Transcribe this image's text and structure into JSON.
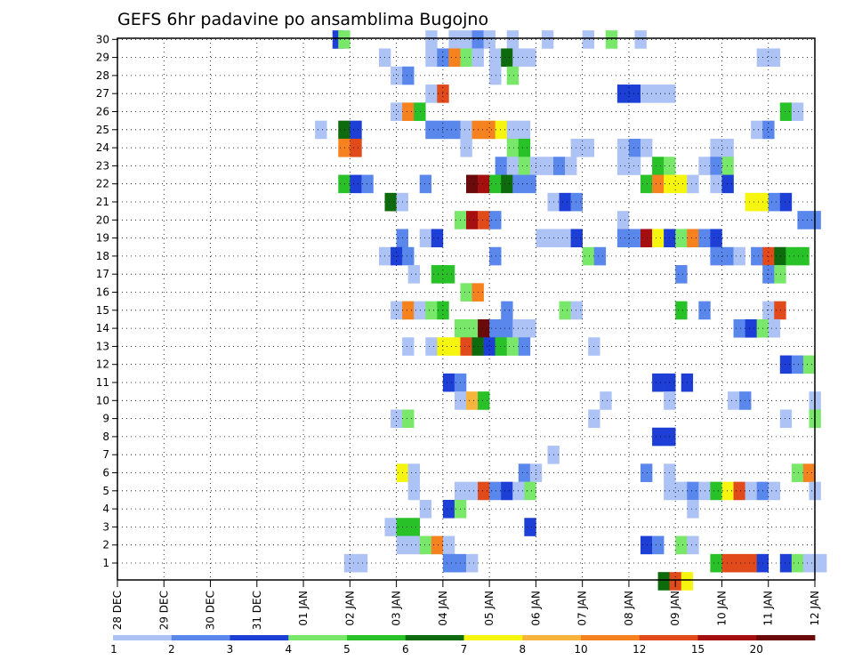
{
  "chart_data": {
    "type": "heatmap",
    "title": "GEFS 6hr padavine po ansamblima Bugojno",
    "x_tick_labels": [
      "28 DEC",
      "29 DEC",
      "30 DEC",
      "31 DEC",
      "01 JAN",
      "02 JAN",
      "03 JAN",
      "04 JAN",
      "05 JAN",
      "06 JAN",
      "07 JAN",
      "08 JAN",
      "09 JAN",
      "10 JAN",
      "11 JAN",
      "12 JAN"
    ],
    "y_tick_labels": [
      "1",
      "2",
      "3",
      "4",
      "5",
      "6",
      "7",
      "8",
      "9",
      "10",
      "11",
      "12",
      "13",
      "14",
      "15",
      "16",
      "17",
      "18",
      "19",
      "20",
      "21",
      "22",
      "23",
      "24",
      "25",
      "26",
      "27",
      "28",
      "29",
      "30"
    ],
    "x_unit": "day",
    "xlim": [
      0,
      15
    ],
    "ylim": [
      0,
      30
    ],
    "grid": true,
    "colorbar": {
      "labels": [
        "1",
        "2",
        "3",
        "4",
        "5",
        "6",
        "7",
        "8",
        "10",
        "12",
        "15",
        "20"
      ],
      "colors": [
        "#aec3f5",
        "#5a87ec",
        "#1e3fd6",
        "#79e86a",
        "#28c228",
        "#0d6b0d",
        "#f5f50f",
        "#f7b43c",
        "#f5821e",
        "#e14a1a",
        "#a50f0f",
        "#6b0a0a"
      ]
    },
    "values_note": "",
    "cells": [
      [
        4.75,
        30,
        3
      ],
      [
        4.875,
        30,
        4
      ],
      [
        6.75,
        30,
        1
      ],
      [
        7.25,
        30,
        1
      ],
      [
        7.5,
        30,
        1
      ],
      [
        7.75,
        30,
        2
      ],
      [
        8.0,
        30,
        1
      ],
      [
        8.5,
        30,
        1
      ],
      [
        9.25,
        30,
        1
      ],
      [
        10.125,
        30,
        1
      ],
      [
        10.625,
        30,
        4
      ],
      [
        11.25,
        30,
        1
      ],
      [
        5.75,
        29,
        1
      ],
      [
        6.75,
        29,
        1
      ],
      [
        7.0,
        29,
        2
      ],
      [
        7.25,
        29,
        9
      ],
      [
        7.5,
        29,
        4
      ],
      [
        7.75,
        29,
        1
      ],
      [
        8.125,
        29,
        1
      ],
      [
        8.375,
        29,
        6
      ],
      [
        8.625,
        29,
        1
      ],
      [
        8.875,
        29,
        1
      ],
      [
        13.875,
        29,
        1
      ],
      [
        14.125,
        29,
        1
      ],
      [
        6.0,
        28,
        1
      ],
      [
        6.25,
        28,
        2
      ],
      [
        8.125,
        28,
        1
      ],
      [
        8.5,
        28,
        4
      ],
      [
        6.75,
        27,
        1
      ],
      [
        7.0,
        27,
        10
      ],
      [
        10.875,
        27,
        3
      ],
      [
        11.125,
        27,
        3
      ],
      [
        11.375,
        27,
        1
      ],
      [
        11.625,
        27,
        1
      ],
      [
        11.875,
        27,
        1
      ],
      [
        6.0,
        26,
        1
      ],
      [
        6.25,
        26,
        9
      ],
      [
        6.5,
        26,
        5
      ],
      [
        14.375,
        26,
        5
      ],
      [
        14.625,
        26,
        1
      ],
      [
        4.375,
        25,
        1
      ],
      [
        4.875,
        25,
        6
      ],
      [
        5.125,
        25,
        3
      ],
      [
        6.75,
        25,
        2
      ],
      [
        7.0,
        25,
        2
      ],
      [
        7.25,
        25,
        2
      ],
      [
        7.5,
        25,
        1
      ],
      [
        7.75,
        25,
        9
      ],
      [
        8.0,
        25,
        9
      ],
      [
        8.25,
        25,
        7
      ],
      [
        8.5,
        25,
        1
      ],
      [
        8.75,
        25,
        1
      ],
      [
        13.75,
        25,
        1
      ],
      [
        14.0,
        25,
        2
      ],
      [
        4.875,
        24,
        9
      ],
      [
        5.125,
        24,
        10
      ],
      [
        7.5,
        24,
        1
      ],
      [
        8.5,
        24,
        4
      ],
      [
        8.75,
        24,
        5
      ],
      [
        9.875,
        24,
        1
      ],
      [
        10.125,
        24,
        1
      ],
      [
        10.875,
        24,
        1
      ],
      [
        11.125,
        24,
        2
      ],
      [
        11.375,
        24,
        1
      ],
      [
        12.875,
        24,
        1
      ],
      [
        13.125,
        24,
        1
      ],
      [
        8.25,
        23,
        2
      ],
      [
        8.5,
        23,
        1
      ],
      [
        8.75,
        23,
        4
      ],
      [
        9.0,
        23,
        1
      ],
      [
        9.25,
        23,
        1
      ],
      [
        9.5,
        23,
        2
      ],
      [
        9.75,
        23,
        1
      ],
      [
        10.875,
        23,
        1
      ],
      [
        11.125,
        23,
        1
      ],
      [
        11.625,
        23,
        5
      ],
      [
        11.875,
        23,
        4
      ],
      [
        12.625,
        23,
        1
      ],
      [
        12.875,
        23,
        2
      ],
      [
        13.125,
        23,
        4
      ],
      [
        4.875,
        22,
        5
      ],
      [
        5.125,
        22,
        3
      ],
      [
        5.375,
        22,
        2
      ],
      [
        6.625,
        22,
        2
      ],
      [
        7.625,
        22,
        12
      ],
      [
        7.875,
        22,
        11
      ],
      [
        8.125,
        22,
        5
      ],
      [
        8.375,
        22,
        6
      ],
      [
        8.625,
        22,
        2
      ],
      [
        8.875,
        22,
        2
      ],
      [
        11.375,
        22,
        5
      ],
      [
        11.625,
        22,
        9
      ],
      [
        11.875,
        22,
        7
      ],
      [
        12.125,
        22,
        7
      ],
      [
        12.375,
        22,
        1
      ],
      [
        12.875,
        22,
        1
      ],
      [
        13.125,
        22,
        3
      ],
      [
        5.875,
        21,
        6
      ],
      [
        6.125,
        21,
        1
      ],
      [
        9.375,
        21,
        1
      ],
      [
        9.625,
        21,
        3
      ],
      [
        9.875,
        21,
        2
      ],
      [
        13.625,
        21,
        7
      ],
      [
        13.875,
        21,
        7
      ],
      [
        14.125,
        21,
        2
      ],
      [
        14.375,
        21,
        3
      ],
      [
        7.375,
        20,
        4
      ],
      [
        7.625,
        20,
        11
      ],
      [
        7.875,
        20,
        10
      ],
      [
        8.125,
        20,
        2
      ],
      [
        10.875,
        20,
        1
      ],
      [
        14.75,
        20,
        2
      ],
      [
        15.0,
        20,
        2
      ],
      [
        6.125,
        19,
        2
      ],
      [
        6.625,
        19,
        1
      ],
      [
        6.875,
        19,
        3
      ],
      [
        9.125,
        19,
        1
      ],
      [
        9.375,
        19,
        1
      ],
      [
        9.625,
        19,
        1
      ],
      [
        9.875,
        19,
        3
      ],
      [
        10.875,
        19,
        2
      ],
      [
        11.125,
        19,
        2
      ],
      [
        11.375,
        19,
        11
      ],
      [
        11.625,
        19,
        7
      ],
      [
        11.875,
        19,
        3
      ],
      [
        12.125,
        19,
        4
      ],
      [
        12.375,
        19,
        9
      ],
      [
        12.625,
        19,
        2
      ],
      [
        12.875,
        19,
        3
      ],
      [
        5.75,
        18,
        1
      ],
      [
        6.0,
        18,
        3
      ],
      [
        6.25,
        18,
        2
      ],
      [
        8.125,
        18,
        2
      ],
      [
        10.125,
        18,
        4
      ],
      [
        10.375,
        18,
        2
      ],
      [
        12.875,
        18,
        2
      ],
      [
        13.125,
        18,
        2
      ],
      [
        13.375,
        18,
        1
      ],
      [
        13.75,
        18,
        2
      ],
      [
        14.0,
        18,
        10
      ],
      [
        14.25,
        18,
        6
      ],
      [
        14.5,
        18,
        5
      ],
      [
        14.75,
        18,
        5
      ],
      [
        6.375,
        17,
        1
      ],
      [
        6.875,
        17,
        5
      ],
      [
        7.125,
        17,
        5
      ],
      [
        12.125,
        17,
        2
      ],
      [
        14.0,
        17,
        2
      ],
      [
        14.25,
        17,
        4
      ],
      [
        7.5,
        16,
        4
      ],
      [
        7.75,
        16,
        9
      ],
      [
        6.0,
        15,
        1
      ],
      [
        6.25,
        15,
        9
      ],
      [
        6.5,
        15,
        1
      ],
      [
        6.75,
        15,
        4
      ],
      [
        7.0,
        15,
        5
      ],
      [
        8.375,
        15,
        2
      ],
      [
        9.625,
        15,
        4
      ],
      [
        9.875,
        15,
        1
      ],
      [
        12.125,
        15,
        5
      ],
      [
        12.625,
        15,
        2
      ],
      [
        14.0,
        15,
        1
      ],
      [
        14.25,
        15,
        10
      ],
      [
        7.375,
        14,
        4
      ],
      [
        7.625,
        14,
        4
      ],
      [
        7.875,
        14,
        12
      ],
      [
        8.125,
        14,
        2
      ],
      [
        8.375,
        14,
        2
      ],
      [
        8.625,
        14,
        1
      ],
      [
        8.875,
        14,
        1
      ],
      [
        13.375,
        14,
        2
      ],
      [
        13.625,
        14,
        3
      ],
      [
        13.875,
        14,
        4
      ],
      [
        14.125,
        14,
        1
      ],
      [
        6.25,
        13,
        1
      ],
      [
        6.75,
        13,
        1
      ],
      [
        7.0,
        13,
        7
      ],
      [
        7.25,
        13,
        7
      ],
      [
        7.5,
        13,
        10
      ],
      [
        7.75,
        13,
        6
      ],
      [
        8.0,
        13,
        3
      ],
      [
        8.25,
        13,
        5
      ],
      [
        8.5,
        13,
        4
      ],
      [
        8.75,
        13,
        2
      ],
      [
        10.25,
        13,
        1
      ],
      [
        14.375,
        12,
        3
      ],
      [
        14.625,
        12,
        2
      ],
      [
        14.875,
        12,
        4
      ],
      [
        7.125,
        11,
        3
      ],
      [
        7.375,
        11,
        2
      ],
      [
        11.625,
        11,
        3
      ],
      [
        11.875,
        11,
        3
      ],
      [
        12.25,
        11,
        3
      ],
      [
        7.375,
        10,
        1
      ],
      [
        7.625,
        10,
        8
      ],
      [
        7.875,
        10,
        5
      ],
      [
        10.5,
        10,
        1
      ],
      [
        11.875,
        10,
        1
      ],
      [
        13.25,
        10,
        1
      ],
      [
        13.5,
        10,
        2
      ],
      [
        15.0,
        10,
        1
      ],
      [
        6.0,
        9,
        1
      ],
      [
        6.25,
        9,
        4
      ],
      [
        10.25,
        9,
        1
      ],
      [
        14.375,
        9,
        1
      ],
      [
        15.0,
        9,
        4
      ],
      [
        11.625,
        8,
        3
      ],
      [
        11.875,
        8,
        3
      ],
      [
        9.375,
        7,
        1
      ],
      [
        6.125,
        6,
        7
      ],
      [
        6.375,
        6,
        1
      ],
      [
        8.75,
        6,
        2
      ],
      [
        9.0,
        6,
        1
      ],
      [
        11.375,
        6,
        2
      ],
      [
        11.875,
        6,
        1
      ],
      [
        14.625,
        6,
        4
      ],
      [
        14.875,
        6,
        9
      ],
      [
        6.375,
        5,
        1
      ],
      [
        7.375,
        5,
        1
      ],
      [
        7.625,
        5,
        1
      ],
      [
        7.875,
        5,
        10
      ],
      [
        8.125,
        5,
        2
      ],
      [
        8.375,
        5,
        3
      ],
      [
        8.625,
        5,
        1
      ],
      [
        8.875,
        5,
        4
      ],
      [
        11.875,
        5,
        1
      ],
      [
        12.125,
        5,
        1
      ],
      [
        12.375,
        5,
        2
      ],
      [
        12.625,
        5,
        1
      ],
      [
        12.875,
        5,
        5
      ],
      [
        13.125,
        5,
        7
      ],
      [
        13.375,
        5,
        10
      ],
      [
        13.625,
        5,
        1
      ],
      [
        13.875,
        5,
        2
      ],
      [
        14.125,
        5,
        1
      ],
      [
        15.0,
        5,
        1
      ],
      [
        6.625,
        4,
        1
      ],
      [
        7.125,
        4,
        3
      ],
      [
        7.375,
        4,
        4
      ],
      [
        12.375,
        4,
        1
      ],
      [
        5.875,
        3,
        1
      ],
      [
        6.125,
        3,
        5
      ],
      [
        6.375,
        3,
        5
      ],
      [
        8.875,
        3,
        3
      ],
      [
        6.125,
        2,
        1
      ],
      [
        6.375,
        2,
        1
      ],
      [
        6.625,
        2,
        4
      ],
      [
        6.875,
        2,
        9
      ],
      [
        7.125,
        2,
        1
      ],
      [
        11.375,
        2,
        3
      ],
      [
        11.625,
        2,
        2
      ],
      [
        12.125,
        2,
        4
      ],
      [
        12.375,
        2,
        1
      ],
      [
        5.0,
        1,
        1
      ],
      [
        5.25,
        1,
        1
      ],
      [
        7.125,
        1,
        2
      ],
      [
        7.375,
        1,
        2
      ],
      [
        7.625,
        1,
        1
      ],
      [
        12.875,
        1,
        5
      ],
      [
        13.125,
        1,
        10
      ],
      [
        13.375,
        1,
        10
      ],
      [
        13.625,
        1,
        10
      ],
      [
        13.875,
        1,
        3
      ],
      [
        14.375,
        1,
        3
      ],
      [
        14.625,
        1,
        4
      ],
      [
        14.875,
        1,
        1
      ],
      [
        15.125,
        1,
        1
      ]
    ],
    "below_axis_cells": [
      [
        11.75,
        0,
        6
      ],
      [
        12.0,
        0,
        10
      ],
      [
        12.25,
        0,
        7
      ]
    ]
  }
}
